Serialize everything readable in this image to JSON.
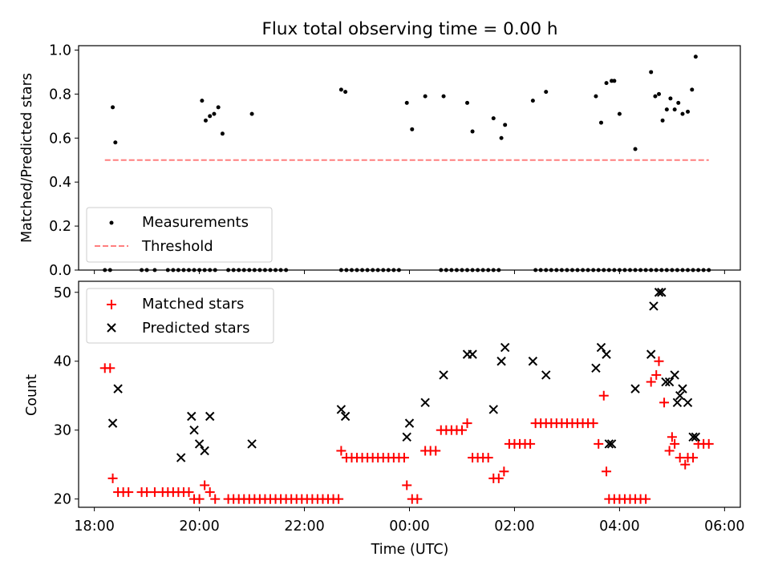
{
  "title": "Flux total observing time = 0.00 h",
  "colors": {
    "matched": "#ff0000",
    "predicted": "#000000",
    "threshold": "#ff7f7f",
    "measurement": "#000000"
  },
  "chart_data": [
    {
      "type": "scatter",
      "title": "Flux total observing time = 0.00 h",
      "xlabel": "",
      "ylabel": "Matched/Predicted stars",
      "xlim": [
        -0.3,
        12.3
      ],
      "ylim": [
        0.0,
        1.02
      ],
      "yticks": [
        0.0,
        0.2,
        0.4,
        0.6,
        0.8,
        1.0
      ],
      "ytick_labels": [
        "0.0",
        "0.2",
        "0.4",
        "0.6",
        "0.8",
        "1.0"
      ],
      "grid": false,
      "legend_position": "lower-left",
      "series": [
        {
          "name": "Measurements",
          "marker": "dot",
          "x": [
            0.35,
            0.4,
            2.05,
            2.12,
            2.2,
            2.28,
            2.36,
            2.44,
            3.0,
            4.7,
            4.78,
            5.95,
            6.05,
            6.3,
            6.65,
            7.1,
            7.2,
            7.6,
            7.75,
            7.82,
            8.35,
            8.6,
            9.55,
            9.65,
            9.75,
            9.85,
            9.9,
            10.0,
            10.3,
            10.6,
            10.68,
            10.75,
            10.82,
            10.9,
            10.97,
            11.05,
            11.12,
            11.2,
            11.3,
            11.38,
            11.45
          ],
          "y": [
            0.74,
            0.58,
            0.77,
            0.68,
            0.7,
            0.71,
            0.74,
            0.62,
            0.71,
            0.82,
            0.81,
            0.76,
            0.64,
            0.79,
            0.79,
            0.76,
            0.63,
            0.69,
            0.6,
            0.66,
            0.77,
            0.81,
            0.79,
            0.67,
            0.85,
            0.86,
            0.86,
            0.71,
            0.55,
            0.9,
            0.79,
            0.8,
            0.68,
            0.73,
            0.78,
            0.73,
            0.76,
            0.71,
            0.72,
            0.82,
            0.97
          ]
        },
        {
          "name": "Threshold",
          "style": "dashed",
          "x": [
            0.2,
            11.7
          ],
          "y": [
            0.5,
            0.5
          ]
        }
      ],
      "zero_points_x": [
        0.2,
        0.3,
        0.9,
        1.0,
        1.15,
        1.4,
        1.5,
        1.6,
        1.7,
        1.8,
        1.9,
        2.0,
        2.1,
        2.2,
        2.3,
        2.55,
        2.65,
        2.75,
        2.85,
        2.95,
        3.05,
        3.15,
        3.25,
        3.35,
        3.45,
        3.55,
        3.65,
        4.7,
        4.8,
        4.9,
        5.0,
        5.1,
        5.2,
        5.3,
        5.4,
        5.5,
        5.6,
        5.7,
        5.8,
        6.6,
        6.7,
        6.8,
        6.9,
        7.0,
        7.1,
        7.2,
        7.3,
        7.4,
        7.5,
        7.6,
        7.7,
        8.4,
        8.5,
        8.6,
        8.7,
        8.8,
        8.9,
        9.0,
        9.1,
        9.2,
        9.3,
        9.4,
        9.5,
        9.6,
        9.7,
        9.8,
        9.9,
        10.0,
        10.1,
        10.2,
        10.3,
        10.4,
        10.5,
        10.6,
        10.7,
        10.8,
        10.9,
        11.0,
        11.1,
        11.2,
        11.3,
        11.4,
        11.5,
        11.6,
        11.7
      ]
    },
    {
      "type": "scatter",
      "xlabel": "Time (UTC)",
      "ylabel": "Count",
      "xlim": [
        -0.3,
        12.3
      ],
      "ylim": [
        18.8,
        51.6
      ],
      "yticks": [
        20,
        30,
        40,
        50
      ],
      "ytick_labels": [
        "20",
        "30",
        "40",
        "50"
      ],
      "xticks": [
        0,
        2,
        4,
        6,
        8,
        10,
        12
      ],
      "xtick_labels": [
        "18:00",
        "20:00",
        "22:00",
        "00:00",
        "02:00",
        "04:00",
        "06:00"
      ],
      "grid": false,
      "legend_position": "top-left",
      "series": [
        {
          "name": "Matched stars",
          "marker": "plus",
          "x": [
            0.2,
            0.3,
            0.35,
            0.45,
            0.55,
            0.65,
            0.9,
            1.0,
            1.15,
            1.3,
            1.4,
            1.5,
            1.6,
            1.7,
            1.8,
            1.9,
            2.0,
            2.1,
            2.2,
            2.3,
            2.55,
            2.65,
            2.75,
            2.85,
            2.95,
            3.05,
            3.15,
            3.25,
            3.35,
            3.45,
            3.55,
            3.65,
            3.75,
            3.85,
            3.95,
            4.05,
            4.15,
            4.25,
            4.35,
            4.45,
            4.55,
            4.65,
            4.7,
            4.8,
            4.9,
            5.0,
            5.1,
            5.2,
            5.3,
            5.4,
            5.5,
            5.6,
            5.7,
            5.8,
            5.9,
            5.95,
            6.05,
            6.15,
            6.3,
            6.4,
            6.5,
            6.6,
            6.7,
            6.8,
            6.9,
            7.0,
            7.1,
            7.2,
            7.3,
            7.4,
            7.5,
            7.6,
            7.7,
            7.8,
            7.9,
            8.0,
            8.1,
            8.2,
            8.3,
            8.4,
            8.5,
            8.6,
            8.7,
            8.8,
            8.9,
            9.0,
            9.1,
            9.2,
            9.3,
            9.4,
            9.5,
            9.6,
            9.7,
            9.75,
            9.8,
            9.9,
            10.0,
            10.1,
            10.2,
            10.3,
            10.4,
            10.5,
            10.6,
            10.7,
            10.75,
            10.85,
            10.95,
            11.0,
            11.05,
            11.15,
            11.25,
            11.3,
            11.4,
            11.5,
            11.6,
            11.7
          ],
          "y": [
            39,
            39,
            23,
            21,
            21,
            21,
            21,
            21,
            21,
            21,
            21,
            21,
            21,
            21,
            21,
            20,
            20,
            22,
            21,
            20,
            20,
            20,
            20,
            20,
            20,
            20,
            20,
            20,
            20,
            20,
            20,
            20,
            20,
            20,
            20,
            20,
            20,
            20,
            20,
            20,
            20,
            20,
            27,
            26,
            26,
            26,
            26,
            26,
            26,
            26,
            26,
            26,
            26,
            26,
            26,
            22,
            20,
            20,
            27,
            27,
            27,
            30,
            30,
            30,
            30,
            30,
            31,
            26,
            26,
            26,
            26,
            23,
            23,
            24,
            28,
            28,
            28,
            28,
            28,
            31,
            31,
            31,
            31,
            31,
            31,
            31,
            31,
            31,
            31,
            31,
            31,
            28,
            35,
            24,
            20,
            20,
            20,
            20,
            20,
            20,
            20,
            20,
            37,
            38,
            40,
            34,
            27,
            29,
            28,
            26,
            25,
            26,
            26,
            28,
            28,
            28
          ]
        },
        {
          "name": "Predicted stars",
          "marker": "x",
          "x": [
            0.35,
            0.45,
            1.65,
            1.85,
            1.9,
            2.0,
            2.1,
            2.2,
            3.0,
            4.7,
            4.78,
            5.95,
            6.0,
            6.3,
            6.65,
            7.1,
            7.2,
            7.6,
            7.75,
            7.82,
            8.35,
            8.6,
            9.55,
            9.65,
            9.75,
            9.8,
            9.85,
            10.3,
            10.6,
            10.65,
            10.75,
            10.8,
            10.88,
            10.95,
            11.05,
            11.1,
            11.15,
            11.2,
            11.3,
            11.4,
            11.45
          ],
          "y": [
            31,
            36,
            26,
            32,
            30,
            28,
            27,
            32,
            28,
            33,
            32,
            29,
            31,
            34,
            38,
            41,
            41,
            33,
            40,
            42,
            40,
            38,
            39,
            42,
            41,
            28,
            28,
            36,
            41,
            48,
            50,
            50,
            37,
            37,
            38,
            34,
            35,
            36,
            34,
            29,
            29
          ]
        }
      ]
    }
  ]
}
